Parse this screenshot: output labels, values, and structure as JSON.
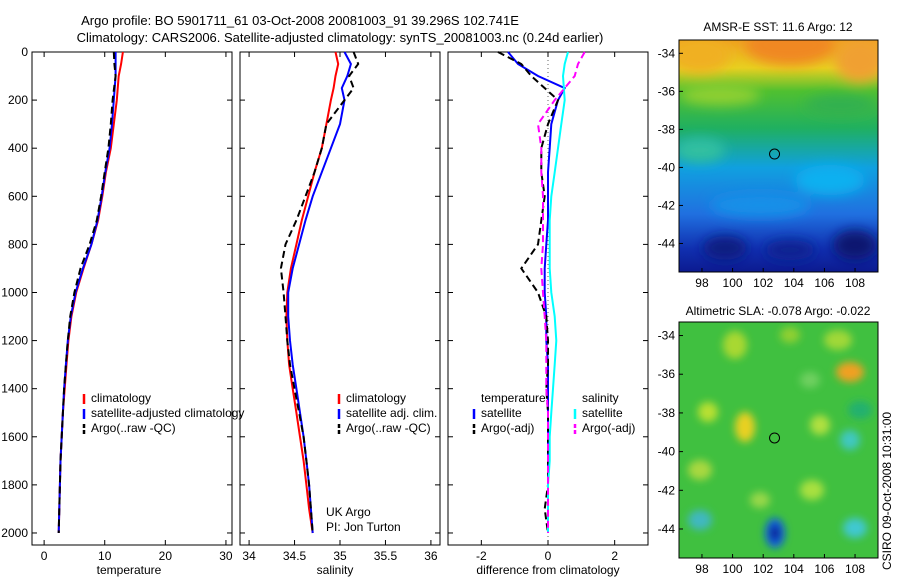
{
  "title_line1": "Argo profile: BO 5901711_61 03-Oct-2008 20081003_91 39.296S 102.741E",
  "title_line2": "Climatology: CARS2006. Satellite-adjusted climatology: synTS_20081003.nc (0.24d earlier)",
  "side_label": "CSIRO 09-Oct-2008 10:31:00",
  "colors": {
    "climatology": "#ff0000",
    "satellite": "#0000ff",
    "argo": "#000000",
    "salinity_sat": "#00ffff",
    "salinity_argo": "#ff00ff"
  },
  "chart_data": [
    {
      "type": "line",
      "xlabel": "temperature",
      "ylabel": "",
      "xlim": [
        -2,
        31
      ],
      "ylim": [
        0,
        2050
      ],
      "y_reversed": true,
      "xticks": [
        0,
        10,
        20,
        30
      ],
      "yticks": [
        0,
        200,
        400,
        600,
        800,
        1000,
        1200,
        1400,
        1600,
        1800,
        2000
      ],
      "legend": [
        "climatology",
        "satellite-adjusted climatology",
        "Argo(..raw -QC)"
      ],
      "series": [
        {
          "name": "climatology",
          "style": "solid",
          "color": "#ff0000",
          "points": [
            [
              13.0,
              0
            ],
            [
              12.7,
              50
            ],
            [
              12.3,
              100
            ],
            [
              12.0,
              200
            ],
            [
              11.5,
              300
            ],
            [
              11.0,
              400
            ],
            [
              10.2,
              500
            ],
            [
              9.6,
              600
            ],
            [
              8.9,
              700
            ],
            [
              7.8,
              800
            ],
            [
              6.5,
              900
            ],
            [
              5.3,
              1000
            ],
            [
              4.5,
              1100
            ],
            [
              4.0,
              1200
            ],
            [
              3.7,
              1300
            ],
            [
              3.4,
              1400
            ],
            [
              3.1,
              1500
            ],
            [
              2.9,
              1600
            ],
            [
              2.7,
              1700
            ],
            [
              2.6,
              1800
            ],
            [
              2.5,
              1900
            ],
            [
              2.4,
              2000
            ]
          ]
        },
        {
          "name": "satellite-adjusted climatology",
          "style": "solid",
          "color": "#0000ff",
          "points": [
            [
              11.8,
              0
            ],
            [
              11.8,
              50
            ],
            [
              11.8,
              100
            ],
            [
              11.5,
              200
            ],
            [
              11.2,
              300
            ],
            [
              10.8,
              400
            ],
            [
              10.1,
              500
            ],
            [
              9.5,
              600
            ],
            [
              8.8,
              700
            ],
            [
              7.8,
              800
            ],
            [
              6.4,
              900
            ],
            [
              5.2,
              1000
            ],
            [
              4.4,
              1100
            ],
            [
              3.9,
              1200
            ],
            [
              3.6,
              1300
            ],
            [
              3.3,
              1400
            ],
            [
              3.1,
              1500
            ],
            [
              2.9,
              1600
            ],
            [
              2.7,
              1700
            ],
            [
              2.6,
              1800
            ],
            [
              2.5,
              1900
            ],
            [
              2.4,
              2000
            ]
          ]
        },
        {
          "name": "Argo(..raw -QC)",
          "style": "dash",
          "color": "#000000",
          "points": [
            [
              11.5,
              0
            ],
            [
              11.6,
              50
            ],
            [
              11.8,
              100
            ],
            [
              11.3,
              200
            ],
            [
              11.0,
              300
            ],
            [
              10.6,
              400
            ],
            [
              10.0,
              500
            ],
            [
              9.4,
              600
            ],
            [
              8.7,
              700
            ],
            [
              7.5,
              800
            ],
            [
              6.0,
              900
            ],
            [
              5.0,
              1000
            ],
            [
              4.3,
              1100
            ],
            [
              3.9,
              1200
            ],
            [
              3.6,
              1300
            ],
            [
              3.3,
              1400
            ],
            [
              3.1,
              1500
            ],
            [
              2.9,
              1600
            ],
            [
              2.7,
              1700
            ],
            [
              2.6,
              1800
            ],
            [
              2.5,
              1900
            ],
            [
              2.4,
              2000
            ]
          ]
        }
      ]
    },
    {
      "type": "line",
      "xlabel": "salinity",
      "xlim": [
        33.9,
        36.1
      ],
      "ylim": [
        0,
        2050
      ],
      "y_reversed": true,
      "xticks": [
        34,
        34.5,
        35,
        35.5,
        36
      ],
      "legend": [
        "climatology",
        "satellite adj. clim.",
        "Argo(..raw -QC)"
      ],
      "annotation": [
        "UK Argo",
        "PI: Jon Turton"
      ],
      "series": [
        {
          "name": "climatology",
          "style": "solid",
          "color": "#ff0000",
          "points": [
            [
              34.95,
              0
            ],
            [
              34.98,
              50
            ],
            [
              34.95,
              100
            ],
            [
              34.93,
              150
            ],
            [
              34.9,
              200
            ],
            [
              34.85,
              300
            ],
            [
              34.8,
              400
            ],
            [
              34.72,
              500
            ],
            [
              34.65,
              600
            ],
            [
              34.58,
              700
            ],
            [
              34.52,
              800
            ],
            [
              34.46,
              900
            ],
            [
              34.42,
              1000
            ],
            [
              34.41,
              1100
            ],
            [
              34.42,
              1200
            ],
            [
              34.44,
              1300
            ],
            [
              34.48,
              1400
            ],
            [
              34.52,
              1500
            ],
            [
              34.56,
              1600
            ],
            [
              34.6,
              1700
            ],
            [
              34.63,
              1800
            ],
            [
              34.66,
              1900
            ],
            [
              34.7,
              2000
            ]
          ]
        },
        {
          "name": "satellite adj. clim.",
          "style": "solid",
          "color": "#0000ff",
          "points": [
            [
              35.05,
              0
            ],
            [
              35.12,
              50
            ],
            [
              35.08,
              100
            ],
            [
              35.02,
              150
            ],
            [
              35.05,
              200
            ],
            [
              35.0,
              300
            ],
            [
              34.9,
              400
            ],
            [
              34.8,
              500
            ],
            [
              34.7,
              600
            ],
            [
              34.62,
              700
            ],
            [
              34.55,
              800
            ],
            [
              34.48,
              900
            ],
            [
              34.43,
              1000
            ],
            [
              34.43,
              1100
            ],
            [
              34.45,
              1200
            ],
            [
              34.48,
              1300
            ],
            [
              34.52,
              1400
            ],
            [
              34.56,
              1500
            ],
            [
              34.6,
              1600
            ],
            [
              34.63,
              1700
            ],
            [
              34.66,
              1800
            ],
            [
              34.68,
              1900
            ],
            [
              34.7,
              2000
            ]
          ]
        },
        {
          "name": "Argo(..raw -QC)",
          "style": "dash",
          "color": "#000000",
          "points": [
            [
              35.15,
              0
            ],
            [
              35.2,
              50
            ],
            [
              35.1,
              100
            ],
            [
              35.15,
              150
            ],
            [
              35.05,
              200
            ],
            [
              34.85,
              300
            ],
            [
              34.8,
              400
            ],
            [
              34.72,
              500
            ],
            [
              34.62,
              600
            ],
            [
              34.52,
              700
            ],
            [
              34.4,
              800
            ],
            [
              34.35,
              900
            ],
            [
              34.38,
              1000
            ],
            [
              34.4,
              1100
            ],
            [
              34.42,
              1200
            ],
            [
              34.45,
              1300
            ],
            [
              34.5,
              1400
            ],
            [
              34.55,
              1500
            ],
            [
              34.6,
              1600
            ],
            [
              34.63,
              1700
            ],
            [
              34.66,
              1800
            ],
            [
              34.68,
              1900
            ],
            [
              34.7,
              2000
            ]
          ]
        }
      ]
    },
    {
      "type": "line",
      "xlabel": "difference from climatology",
      "xlim": [
        -3,
        3
      ],
      "ylim": [
        0,
        2050
      ],
      "y_reversed": true,
      "xticks": [
        -2,
        0,
        2
      ],
      "zero_line": true,
      "legend_temperature": {
        "header": "temperature",
        "items": [
          "satellite",
          "Argo(-adj)"
        ]
      },
      "legend_salinity": {
        "header": "salinity",
        "items": [
          "satellite",
          "Argo(-adj)"
        ]
      },
      "series": [
        {
          "name": "satellite",
          "group": "temperature",
          "style": "solid",
          "color": "#0000ff",
          "points": [
            [
              -1.2,
              0
            ],
            [
              -0.9,
              50
            ],
            [
              -0.3,
              100
            ],
            [
              0.5,
              150
            ],
            [
              0.3,
              200
            ],
            [
              0.1,
              300
            ],
            [
              0.05,
              400
            ],
            [
              0.0,
              500
            ],
            [
              0.0,
              600
            ],
            [
              0.0,
              700
            ],
            [
              -0.05,
              800
            ],
            [
              -0.1,
              900
            ],
            [
              -0.1,
              1000
            ],
            [
              -0.05,
              1100
            ],
            [
              -0.05,
              1200
            ],
            [
              0.0,
              1300
            ],
            [
              0.0,
              1400
            ],
            [
              0.0,
              1500
            ],
            [
              0.0,
              1600
            ],
            [
              0.0,
              1700
            ],
            [
              0.0,
              1800
            ],
            [
              0.0,
              1900
            ],
            [
              0.0,
              2000
            ]
          ]
        },
        {
          "name": "Argo(-adj)",
          "group": "temperature",
          "style": "dash",
          "color": "#000000",
          "points": [
            [
              -1.5,
              0
            ],
            [
              -0.8,
              50
            ],
            [
              -0.5,
              100
            ],
            [
              0.3,
              200
            ],
            [
              0.0,
              300
            ],
            [
              -0.2,
              400
            ],
            [
              -0.2,
              500
            ],
            [
              -0.1,
              600
            ],
            [
              -0.2,
              700
            ],
            [
              -0.3,
              800
            ],
            [
              -0.8,
              900
            ],
            [
              -0.3,
              1000
            ],
            [
              -0.05,
              1100
            ],
            [
              0.0,
              1200
            ],
            [
              0.0,
              1300
            ],
            [
              -0.05,
              1400
            ],
            [
              0.0,
              1500
            ],
            [
              0.0,
              1600
            ],
            [
              0.0,
              1700
            ],
            [
              0.0,
              1800
            ],
            [
              -0.1,
              1900
            ],
            [
              0.0,
              2000
            ]
          ]
        },
        {
          "name": "satellite",
          "group": "salinity",
          "style": "solid",
          "color": "#00ffff",
          "points": [
            [
              0.6,
              0
            ],
            [
              0.5,
              50
            ],
            [
              0.45,
              100
            ],
            [
              0.5,
              200
            ],
            [
              0.4,
              300
            ],
            [
              0.3,
              400
            ],
            [
              0.2,
              500
            ],
            [
              0.1,
              600
            ],
            [
              0.05,
              700
            ],
            [
              0.05,
              800
            ],
            [
              0.05,
              900
            ],
            [
              0.1,
              1000
            ],
            [
              0.2,
              1100
            ],
            [
              0.25,
              1200
            ],
            [
              0.2,
              1300
            ],
            [
              0.15,
              1400
            ],
            [
              0.1,
              1500
            ],
            [
              0.05,
              1600
            ],
            [
              0.05,
              1700
            ],
            [
              0.0,
              1800
            ],
            [
              0.0,
              1900
            ],
            [
              0.0,
              2000
            ]
          ]
        },
        {
          "name": "Argo(-adj)",
          "group": "salinity",
          "style": "dash",
          "color": "#ff00ff",
          "points": [
            [
              1.1,
              0
            ],
            [
              0.9,
              50
            ],
            [
              0.8,
              100
            ],
            [
              0.2,
              200
            ],
            [
              -0.3,
              300
            ],
            [
              -0.2,
              400
            ],
            [
              -0.2,
              500
            ],
            [
              -0.15,
              600
            ],
            [
              -0.15,
              700
            ],
            [
              -0.15,
              800
            ],
            [
              -0.2,
              900
            ],
            [
              -0.15,
              1000
            ],
            [
              -0.1,
              1100
            ],
            [
              -0.05,
              1200
            ],
            [
              -0.05,
              1300
            ],
            [
              -0.05,
              1400
            ],
            [
              0.0,
              1500
            ],
            [
              0.0,
              1600
            ],
            [
              0.0,
              1700
            ],
            [
              0.0,
              1800
            ],
            [
              0.0,
              1900
            ],
            [
              0.0,
              2000
            ]
          ]
        }
      ]
    },
    {
      "type": "heatmap",
      "title": "AMSR-E SST: 11.6 Argo: 12",
      "xlim": [
        96.5,
        109.5
      ],
      "ylim": [
        -45.5,
        -33.3
      ],
      "xticks": [
        98,
        100,
        102,
        104,
        106,
        108
      ],
      "yticks": [
        -34,
        -36,
        -38,
        -40,
        -42,
        -44
      ],
      "marker": [
        102.741,
        -39.296
      ]
    },
    {
      "type": "heatmap",
      "title": "Altimetric SLA: -0.078 Argo: -0.022",
      "xlim": [
        96.5,
        109.5
      ],
      "ylim": [
        -45.5,
        -33.3
      ],
      "xticks": [
        98,
        100,
        102,
        104,
        106,
        108
      ],
      "yticks": [
        -34,
        -36,
        -38,
        -40,
        -42,
        -44
      ],
      "marker": [
        102.741,
        -39.296
      ]
    }
  ]
}
